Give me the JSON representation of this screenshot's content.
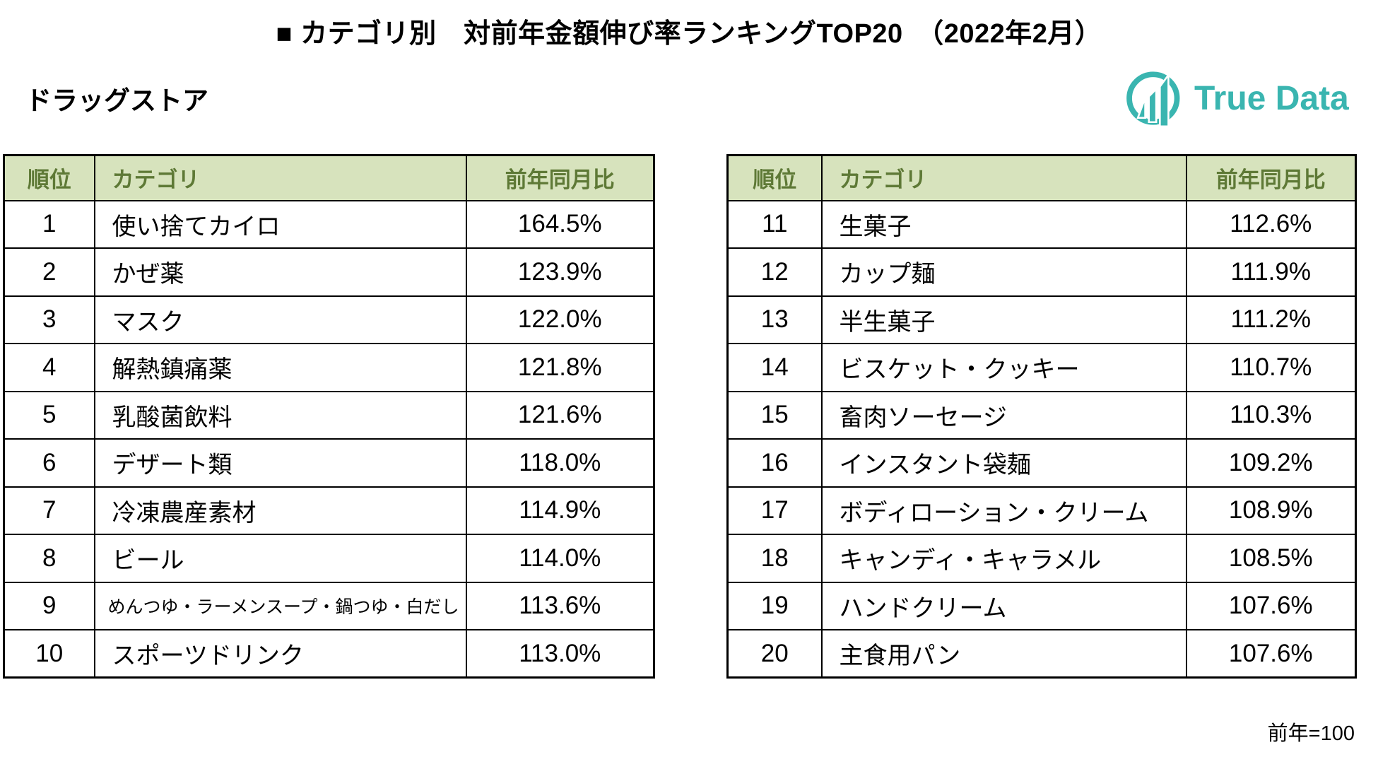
{
  "page": {
    "title": "■ カテゴリ別　対前年金額伸び率ランキングTOP20　（2022年2月）",
    "store_type": "ドラッグストア",
    "footnote": "前年=100"
  },
  "logo": {
    "name": "True Data",
    "icon": "bar-chart-circle-icon",
    "color": "#3AB5B0"
  },
  "table_style": {
    "header_bg": "#D7E3BD",
    "header_text": "#5E7936",
    "border": "#000000"
  },
  "chart_data": {
    "type": "table",
    "title": "カテゴリ別 対前年金額伸び率ランキングTOP20（2022年2月）",
    "segment": "ドラッグストア",
    "columns": [
      "順位",
      "カテゴリ",
      "前年同月比"
    ],
    "note": "前年=100",
    "layout": "two side-by-side tables: ranks 1-10 (left), ranks 11-20 (right)",
    "rows": [
      [
        "1",
        "使い捨てカイロ",
        "164.5%"
      ],
      [
        "2",
        "かぜ薬",
        "123.9%"
      ],
      [
        "3",
        "マスク",
        "122.0%"
      ],
      [
        "4",
        "解熱鎮痛薬",
        "121.8%"
      ],
      [
        "5",
        "乳酸菌飲料",
        "121.6%"
      ],
      [
        "6",
        "デザート類",
        "118.0%"
      ],
      [
        "7",
        "冷凍農産素材",
        "114.9%"
      ],
      [
        "8",
        "ビール",
        "114.0%"
      ],
      [
        "9",
        "めんつゆ・ラーメンスープ・鍋つゆ・白だし",
        "113.6%"
      ],
      [
        "10",
        "スポーツドリンク",
        "113.0%"
      ],
      [
        "11",
        "生菓子",
        "112.6%"
      ],
      [
        "12",
        "カップ麺",
        "111.9%"
      ],
      [
        "13",
        "半生菓子",
        "111.2%"
      ],
      [
        "14",
        "ビスケット・クッキー",
        "110.7%"
      ],
      [
        "15",
        "畜肉ソーセージ",
        "110.3%"
      ],
      [
        "16",
        "インスタント袋麺",
        "109.2%"
      ],
      [
        "17",
        "ボディローション・クリーム",
        "108.9%"
      ],
      [
        "18",
        "キャンディ・キャラメル",
        "108.5%"
      ],
      [
        "19",
        "ハンドクリーム",
        "107.6%"
      ],
      [
        "20",
        "主食用パン",
        "107.6%"
      ]
    ]
  }
}
